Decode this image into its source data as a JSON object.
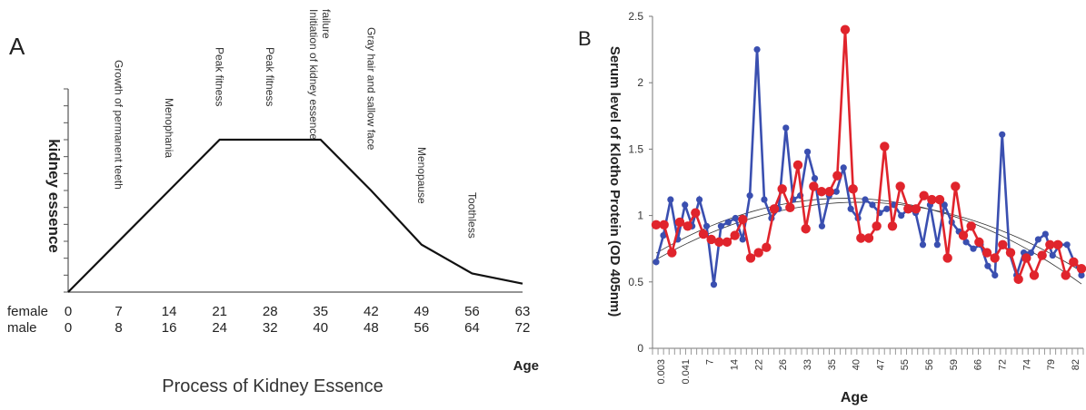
{
  "chart_data": [
    {
      "type": "line",
      "panel_label": "A",
      "title": "Process of  Kidney Essence",
      "ylabel": "kidney essence",
      "xlabel": "Age",
      "rows": [
        {
          "label": "female",
          "ticks": [
            "0",
            "7",
            "14",
            "21",
            "28",
            "35",
            "42",
            "49",
            "56",
            "63"
          ]
        },
        {
          "label": "male",
          "ticks": [
            "0",
            "8",
            "16",
            "24",
            "32",
            "40",
            "48",
            "56",
            "64",
            "72"
          ]
        }
      ],
      "x": [
        0,
        7,
        14,
        21,
        28,
        35,
        42,
        49,
        56,
        63
      ],
      "values": [
        0,
        1.5,
        3.0,
        4.5,
        4.5,
        4.5,
        3.0,
        1.4,
        0.55,
        0.25
      ],
      "stage_labels": [
        {
          "at": 7,
          "text": "Growth of permanent teeth"
        },
        {
          "at": 14,
          "text": "Menophania"
        },
        {
          "at": 21,
          "text": "Peak fitness"
        },
        {
          "at": 28,
          "text": "Peak fitness"
        },
        {
          "at": 35,
          "text": "Initiation of kidney essence  failure"
        },
        {
          "at": 42,
          "text": "Gray hair and sallow face"
        },
        {
          "at": 49,
          "text": "Menopause"
        },
        {
          "at": 56,
          "text": "Toothless"
        }
      ],
      "ylim": [
        0,
        6
      ],
      "grid": false
    },
    {
      "type": "line",
      "panel_label": "B",
      "ylabel": "Serum level of Klotho Protein (OD 405nm)",
      "xlabel": "Age",
      "ylim": [
        0,
        2.5
      ],
      "yticks": [
        "0",
        "0.5",
        "1",
        "1.5",
        "2",
        "2.5"
      ],
      "x_tick_labels": [
        "0.003",
        "0.041",
        "7",
        "14",
        "22",
        "26",
        "33",
        "35",
        "40",
        "47",
        "55",
        "56",
        "59",
        "66",
        "72",
        "74",
        "79",
        "82"
      ],
      "grid": false,
      "series": [
        {
          "color": "#3a4fb0",
          "values": [
            0.65,
            0.85,
            1.12,
            0.82,
            1.08,
            0.92,
            1.12,
            0.92,
            0.48,
            0.92,
            0.95,
            0.98,
            0.82,
            1.15,
            2.25,
            1.12,
            0.98,
            1.05,
            1.66,
            1.12,
            1.15,
            1.48,
            1.28,
            0.92,
            1.15,
            1.18,
            1.36,
            1.05,
            0.98,
            1.12,
            1.08,
            1.02,
            1.05,
            1.08,
            1.0,
            1.05,
            1.02,
            0.78,
            1.08,
            0.78,
            1.08,
            0.95,
            0.88,
            0.8,
            0.75,
            0.78,
            0.62,
            0.55,
            1.61,
            0.72,
            0.55,
            0.72,
            0.72,
            0.82,
            0.86,
            0.7,
            0.78,
            0.78,
            0.65,
            0.55
          ]
        },
        {
          "color": "#e0242c",
          "values": [
            0.93,
            0.93,
            0.72,
            0.95,
            0.92,
            1.02,
            0.86,
            0.82,
            0.8,
            0.8,
            0.85,
            0.97,
            0.68,
            0.72,
            0.76,
            1.05,
            1.2,
            1.06,
            1.38,
            0.9,
            1.22,
            1.18,
            1.18,
            1.3,
            2.4,
            1.2,
            0.83,
            0.83,
            0.92,
            1.52,
            0.92,
            1.22,
            1.05,
            1.05,
            1.15,
            1.12,
            1.12,
            0.68,
            1.22,
            0.85,
            0.92,
            0.8,
            0.72,
            0.68,
            0.78,
            0.72,
            0.52,
            0.68,
            0.55,
            0.7,
            0.78,
            0.78,
            0.55,
            0.65,
            0.6
          ]
        }
      ]
    }
  ]
}
